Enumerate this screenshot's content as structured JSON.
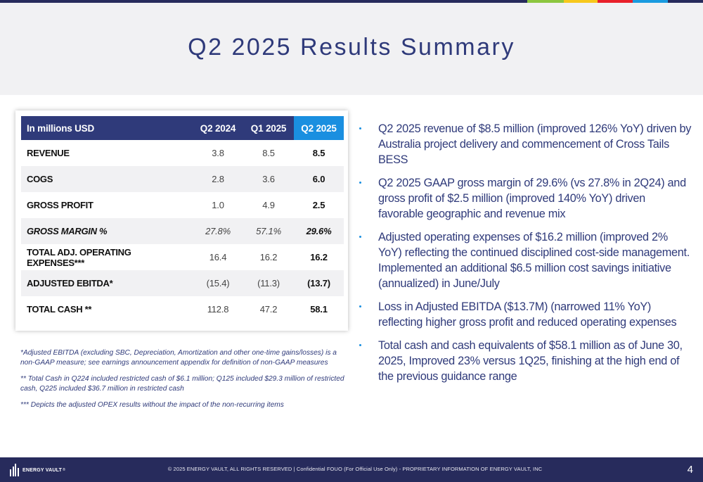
{
  "colors": {
    "navy": "#2f3a7a",
    "dark_navy": "#272b5c",
    "accent_blue": "#1a8fe0",
    "header_bg": "#f1f1f3",
    "stripe_green": "#8cc63f",
    "stripe_yellow": "#f7c81c",
    "stripe_red": "#e8202a",
    "stripe_blue": "#1a9be0"
  },
  "header": {
    "title": "Q2 2025 Results Summary"
  },
  "table": {
    "columns": [
      "In millions USD",
      "Q2 2024",
      "Q1 2025",
      "Q2 2025"
    ],
    "rows": [
      {
        "label": "REVENUE",
        "q2_2024": "3.8",
        "q1_2025": "8.5",
        "q2_2025": "8.5"
      },
      {
        "label": "COGS",
        "q2_2024": "2.8",
        "q1_2025": "3.6",
        "q2_2025": "6.0"
      },
      {
        "label": "GROSS PROFIT",
        "q2_2024": "1.0",
        "q1_2025": "4.9",
        "q2_2025": "2.5"
      },
      {
        "label": "GROSS MARGIN %",
        "q2_2024": "27.8%",
        "q1_2025": "57.1%",
        "q2_2025": "29.6%"
      },
      {
        "label": "TOTAL ADJ. OPERATING EXPENSES***",
        "q2_2024": "16.4",
        "q1_2025": "16.2",
        "q2_2025": "16.2"
      },
      {
        "label": "ADJUSTED EBITDA*",
        "q2_2024": "(15.4)",
        "q1_2025": "(11.3)",
        "q2_2025": "(13.7)"
      },
      {
        "label": "TOTAL CASH **",
        "q2_2024": "112.8",
        "q1_2025": "47.2",
        "q2_2025": "58.1"
      }
    ]
  },
  "footnotes": [
    "*Adjusted EBITDA (excluding SBC, Depreciation, Amortization and other one-time gains/losses) is a non-GAAP measure; see earnings announcement appendix for definition of non-GAAP measures",
    "** Total Cash in Q224 included restricted cash of $6.1 million; Q125 included $29.3 million of restricted cash, Q225 included $36.7 million in restricted cash",
    "*** Depicts the adjusted OPEX results without the impact of the non-recurring items"
  ],
  "bullets": [
    "Q2 2025 revenue of $8.5 million (improved 126% YoY) driven by Australia project delivery and commencement of Cross Tails BESS",
    "Q2 2025 GAAP gross margin of 29.6% (vs 27.8% in 2Q24) and gross profit of $2.5 million (improved 140% YoY) driven favorable geographic and revenue mix",
    "Adjusted operating expenses of $16.2 million (improved 2% YoY) reflecting the continued disciplined cost-side management. Implemented an additional $6.5 million cost savings initiative (annualized) in June/July",
    "Loss in Adjusted EBITDA ($13.7M) (narrowed 11% YoY) reflecting higher gross profit and reduced operating expenses",
    "Total cash and cash equivalents of $58.1 million as of June 30, 2025, Improved 23% versus 1Q25, finishing at the high end of the previous guidance range"
  ],
  "footer": {
    "logo_text": "ENERGY VAULT",
    "logo_mark": "®",
    "legal_text": "© 2025 ENERGY VAULT, ALL RIGHTS RESERVED | Confidential FOUO (For Official Use Only) - PROPRIETARY INFORMATION OF ENERGY VAULT, INC",
    "page_number": "4"
  }
}
